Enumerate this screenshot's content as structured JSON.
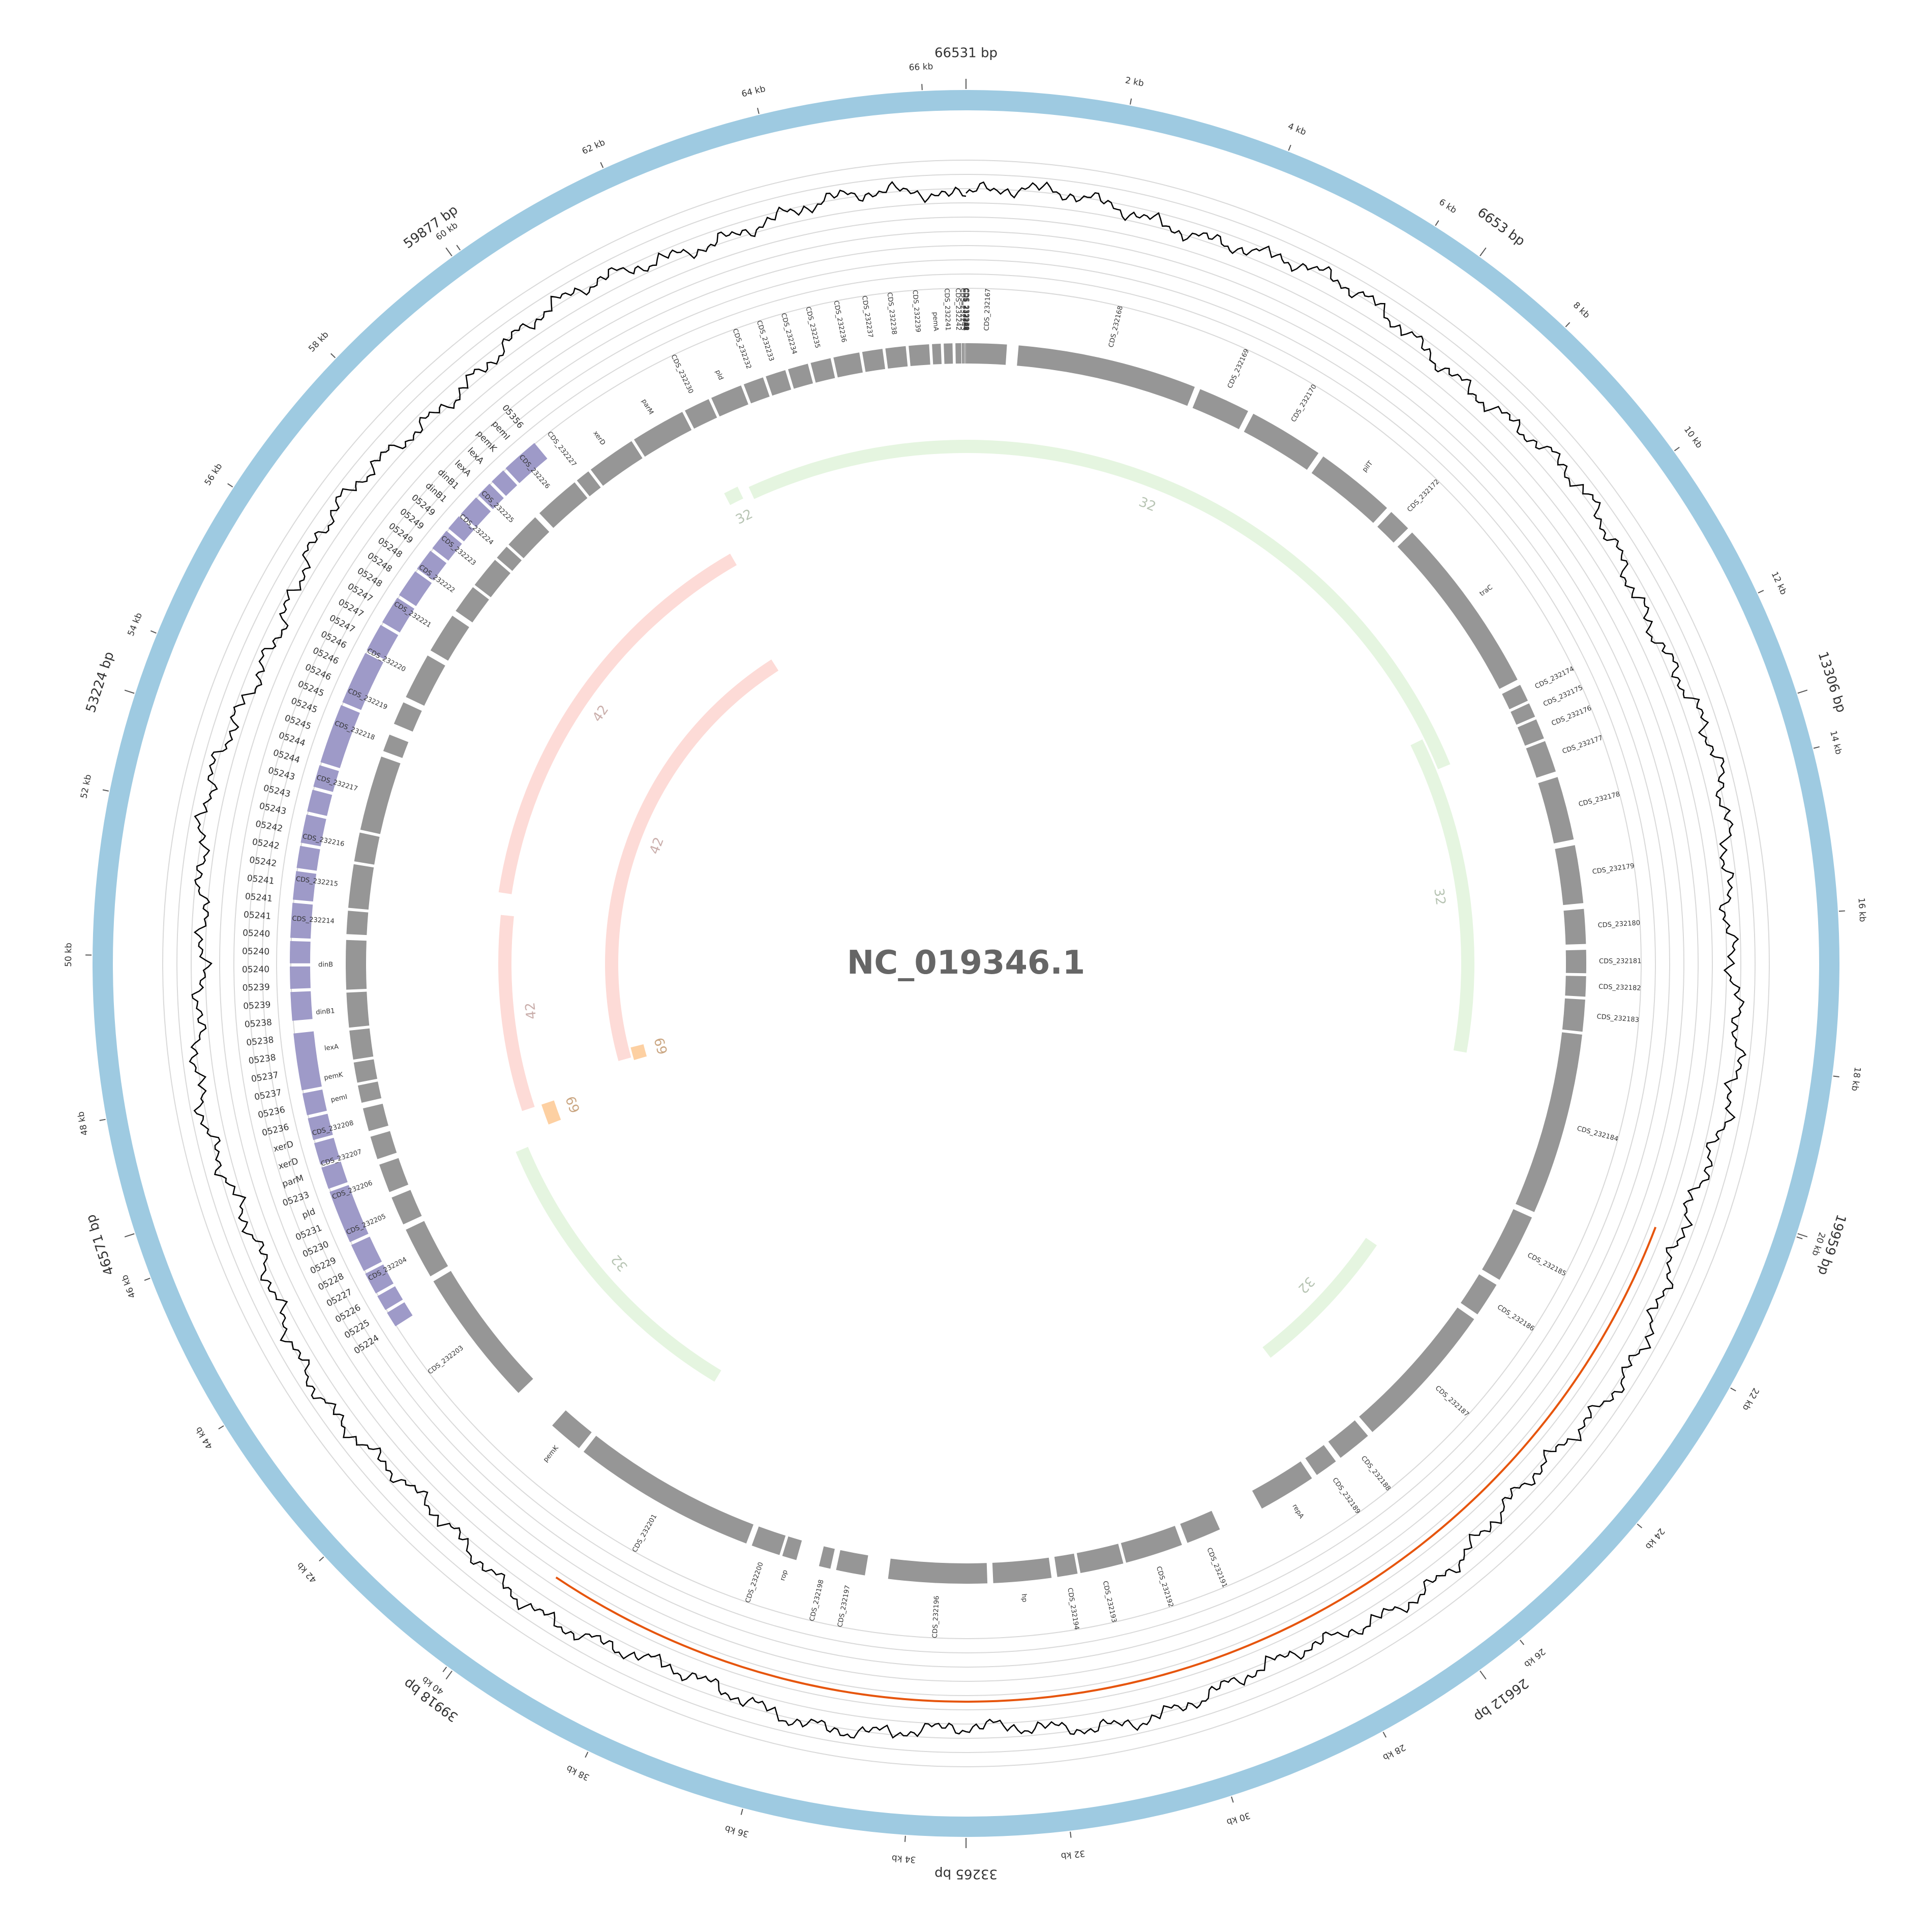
{
  "title": "NC_019346.1",
  "genome_length_bp": 66531,
  "colors": {
    "outer_ring": "#9ecae1",
    "gc_line": "#000000",
    "gc_high": "#2ca02c",
    "gc_low": "#e6550d",
    "forward_cds": "#9e9ac8",
    "cds": "#969696",
    "link_32": "#e5f5e0",
    "link_42": "#fddbd7",
    "link_69": "#fdd0a2",
    "grid": "#d9d9d9",
    "label_text": "#333333",
    "title_text": "#666666"
  },
  "major_position_labels": [
    "66531 bp",
    "6653 bp",
    "13306 bp",
    "19959 bp",
    "26612 bp",
    "33265 bp",
    "39918 bp",
    "46571 bp",
    "53224 bp",
    "59877 bp"
  ],
  "kb_tick_labels": [
    "2 kb",
    "4 kb",
    "6 kb",
    "8 kb",
    "10 kb",
    "12 kb",
    "14 kb",
    "16 kb",
    "18 kb",
    "20 kb",
    "22 kb",
    "24 kb",
    "26 kb",
    "28 kb",
    "30 kb",
    "32 kb",
    "34 kb",
    "36 kb",
    "38 kb",
    "40 kb",
    "42 kb",
    "44 kb",
    "46 kb",
    "48 kb",
    "50 kb",
    "52 kb",
    "54 kb",
    "56 kb",
    "58 kb",
    "60 kb",
    "62 kb",
    "64 kb",
    "66 kb"
  ],
  "cds_features": [
    {
      "label": "CDS_232167",
      "start": 0,
      "end": 700
    },
    {
      "label": "CDS_232168",
      "start": 900,
      "end": 4000
    },
    {
      "label": "CDS_232169",
      "start": 4100,
      "end": 5000
    },
    {
      "label": "CDS_232170",
      "start": 5100,
      "end": 6400
    },
    {
      "label": "pilT",
      "start": 6500,
      "end": 7900
    },
    {
      "label": "CDS_232172",
      "start": 8000,
      "end": 8400
    },
    {
      "label": "traC",
      "start": 8500,
      "end": 11600
    },
    {
      "label": "CDS_232174",
      "start": 11700,
      "end": 12000
    },
    {
      "label": "CDS_232175",
      "start": 12050,
      "end": 12300
    },
    {
      "label": "CDS_232176",
      "start": 12350,
      "end": 12700
    },
    {
      "label": "CDS_232177",
      "start": 12750,
      "end": 13300
    },
    {
      "label": "CDS_232178",
      "start": 13400,
      "end": 14500
    },
    {
      "label": "CDS_232179",
      "start": 14600,
      "end": 15600
    },
    {
      "label": "CDS_232180",
      "start": 15700,
      "end": 16300
    },
    {
      "label": "CDS_232181",
      "start": 16400,
      "end": 16800
    },
    {
      "label": "CDS_232182",
      "start": 16850,
      "end": 17200
    },
    {
      "label": "CDS_232183",
      "start": 17250,
      "end": 17800
    },
    {
      "label": "CDS_232184",
      "start": 17850,
      "end": 21000
    },
    {
      "label": "CDS_232185",
      "start": 21100,
      "end": 22300
    },
    {
      "label": "CDS_232186",
      "start": 22400,
      "end": 23000
    },
    {
      "label": "CDS_232187",
      "start": 23100,
      "end": 25700
    },
    {
      "label": "CDS_232188",
      "start": 25800,
      "end": 26400
    },
    {
      "label": "CDS_232189",
      "start": 26500,
      "end": 26900
    },
    {
      "label": "repA",
      "start": 27000,
      "end": 28000
    },
    {
      "label": "CDS_232191",
      "start": 28800,
      "end": 29400
    },
    {
      "label": "CDS_232192",
      "start": 29500,
      "end": 30500
    },
    {
      "label": "CDS_232193",
      "start": 30550,
      "end": 31300
    },
    {
      "label": "CDS_232194",
      "start": 31350,
      "end": 31700
    },
    {
      "label": "hp",
      "start": 31800,
      "end": 32800
    },
    {
      "label": "CDS_232196",
      "start": 32900,
      "end": 34600
    },
    {
      "label": "CDS_232197",
      "start": 35000,
      "end": 35500
    },
    {
      "label": "CDS_232198",
      "start": 35600,
      "end": 35800
    },
    {
      "label": "rop",
      "start": 36200,
      "end": 36450
    },
    {
      "label": "CDS_232200",
      "start": 36500,
      "end": 37000
    },
    {
      "label": "CDS_232201",
      "start": 37100,
      "end": 40300
    },
    {
      "label": "pemK",
      "start": 40400,
      "end": 41000
    },
    {
      "label": "CDS_232203",
      "start": 41800,
      "end": 44200
    },
    {
      "label": "CDS_232204",
      "start": 44300,
      "end": 45200
    },
    {
      "label": "CDS_232205",
      "start": 45300,
      "end": 45800
    },
    {
      "label": "CDS_232206",
      "start": 45900,
      "end": 46400
    },
    {
      "label": "CDS_232207",
      "start": 46500,
      "end": 46900
    },
    {
      "label": "CDS_232208",
      "start": 47000,
      "end": 47400
    },
    {
      "label": "pemI",
      "start": 47500,
      "end": 47800
    },
    {
      "label": "pemK",
      "start": 47850,
      "end": 48200
    },
    {
      "label": "lexA",
      "start": 48250,
      "end": 48750
    },
    {
      "label": "dinB1",
      "start": 48800,
      "end": 49400
    },
    {
      "label": "dinB",
      "start": 49450,
      "end": 50300
    },
    {
      "label": "CDS_232214",
      "start": 50400,
      "end": 50800
    },
    {
      "label": "CDS_232215",
      "start": 50850,
      "end": 51600
    },
    {
      "label": "CDS_232216",
      "start": 51650,
      "end": 52150
    },
    {
      "label": "CDS_232217",
      "start": 52200,
      "end": 53500
    },
    {
      "label": "CDS_232218",
      "start": 53600,
      "end": 53900
    },
    {
      "label": "CDS_232219",
      "start": 54100,
      "end": 54500
    },
    {
      "label": "CDS_232220",
      "start": 54600,
      "end": 55400
    },
    {
      "label": "CDS_232221",
      "start": 55500,
      "end": 56200
    },
    {
      "label": "CDS_232222",
      "start": 56300,
      "end": 56800
    },
    {
      "label": "CDS_232223",
      "start": 56850,
      "end": 57400
    },
    {
      "label": "CDS_232224",
      "start": 57450,
      "end": 57700
    },
    {
      "label": "CDS_232225",
      "start": 57750,
      "end": 58400
    },
    {
      "label": "CDS_232226",
      "start": 58500,
      "end": 59300
    },
    {
      "label": "CDS_232227",
      "start": 59350,
      "end": 59600
    },
    {
      "label": "xerD",
      "start": 59650,
      "end": 60500
    },
    {
      "label": "parM",
      "start": 60550,
      "end": 61500
    },
    {
      "label": "CDS_232230",
      "start": 61550,
      "end": 62000
    },
    {
      "label": "pld",
      "start": 62050,
      "end": 62600
    },
    {
      "label": "CDS_232232",
      "start": 62650,
      "end": 63000
    },
    {
      "label": "CDS_232233",
      "start": 63050,
      "end": 63400
    },
    {
      "label": "CDS_232234",
      "start": 63450,
      "end": 63800
    },
    {
      "label": "CDS_232235",
      "start": 63850,
      "end": 64200
    },
    {
      "label": "CDS_232236",
      "start": 64250,
      "end": 64700
    },
    {
      "label": "CDS_232237",
      "start": 64750,
      "end": 65100
    },
    {
      "label": "CDS_232238",
      "start": 65150,
      "end": 65500
    },
    {
      "label": "CDS_232239",
      "start": 65550,
      "end": 65900
    },
    {
      "label": "pemA",
      "start": 65950,
      "end": 66100
    },
    {
      "label": "CDS_232241",
      "start": 66150,
      "end": 66300
    },
    {
      "label": "CDS_232242",
      "start": 66350,
      "end": 66450
    },
    {
      "label": "CDS_232243",
      "start": 66460,
      "end": 66500
    },
    {
      "label": "CDS_232244",
      "start": 66505,
      "end": 66520
    },
    {
      "label": "lexA",
      "start": 66521,
      "end": 66525
    },
    {
      "label": "CDS_232246",
      "start": 66526,
      "end": 66527
    },
    {
      "label": "CDS_232247",
      "start": 66527,
      "end": 66528
    },
    {
      "label": "tdk",
      "start": 66528,
      "end": 66529
    },
    {
      "label": "CDS_232249",
      "start": 66529,
      "end": 66530
    },
    {
      "label": "CDS_232250",
      "start": 66530,
      "end": 66531
    }
  ],
  "forward_features": [
    {
      "label": "05224",
      "start": 58600,
      "end": 59200
    },
    {
      "label": "05225",
      "start": 58300,
      "end": 58550
    },
    {
      "label": "05226",
      "start": 58000,
      "end": 58250
    },
    {
      "label": "05227",
      "start": 57600,
      "end": 57950
    },
    {
      "label": "05228",
      "start": 57300,
      "end": 57550
    },
    {
      "label": "05229",
      "start": 56900,
      "end": 57250
    },
    {
      "label": "05230",
      "start": 56500,
      "end": 56850
    },
    {
      "label": "05231",
      "start": 56000,
      "end": 56450
    },
    {
      "label": "pld",
      "start": 55500,
      "end": 55950
    },
    {
      "label": "05233",
      "start": 55000,
      "end": 55450
    },
    {
      "label": "parM",
      "start": 54100,
      "end": 54950
    },
    {
      "label": "xerD",
      "start": 53100,
      "end": 54050
    },
    {
      "label": "05236",
      "start": 52700,
      "end": 53050
    },
    {
      "label": "05237",
      "start": 52300,
      "end": 52650
    },
    {
      "label": "05238",
      "start": 51800,
      "end": 52250
    },
    {
      "label": "05239",
      "start": 51400,
      "end": 51750
    },
    {
      "label": "05240",
      "start": 50900,
      "end": 51350
    },
    {
      "label": "05241",
      "start": 50300,
      "end": 50850
    },
    {
      "label": "05242",
      "start": 49900,
      "end": 50250
    },
    {
      "label": "05243",
      "start": 49500,
      "end": 49850
    },
    {
      "label": "05244",
      "start": 49000,
      "end": 49450
    },
    {
      "label": "05245",
      "start": 47900,
      "end": 48800
    },
    {
      "label": "05246",
      "start": 47500,
      "end": 47850
    },
    {
      "label": "05247",
      "start": 47100,
      "end": 47450
    },
    {
      "label": "05248",
      "start": 46700,
      "end": 47050
    },
    {
      "label": "05249",
      "start": 46300,
      "end": 46650
    },
    {
      "label": "dinB1",
      "start": 45400,
      "end": 46250
    },
    {
      "label": "lexA",
      "start": 44900,
      "end": 45350
    },
    {
      "label": "pemK",
      "start": 44500,
      "end": 44850
    },
    {
      "label": "pemI",
      "start": 44200,
      "end": 44450
    },
    {
      "label": "05356",
      "start": 43900,
      "end": 44150
    }
  ],
  "forward_outer_labels": [
    "05224",
    "05225",
    "05226",
    "05227",
    "05228",
    "05229",
    "05230",
    "05231",
    "pld",
    "05233",
    "parM",
    "xerD",
    "xerD",
    "05236",
    "05236",
    "05237",
    "05237",
    "05238",
    "05238",
    "05238",
    "05239",
    "05239",
    "05240",
    "05240",
    "05240",
    "05241",
    "05241",
    "05241",
    "05242",
    "05242",
    "05242",
    "05243",
    "05243",
    "05243",
    "05244",
    "05244",
    "05245",
    "05245",
    "05245",
    "05246",
    "05246",
    "05246",
    "05247",
    "05247",
    "05247",
    "05248",
    "05248",
    "05248",
    "05249",
    "05249",
    "05249",
    "dinB1",
    "dinB1",
    "lexA",
    "lexA",
    "pemK",
    "pemI",
    "05356"
  ],
  "links": [
    {
      "label": "32",
      "color": "link_32",
      "start": 62000,
      "end": 12500
    },
    {
      "label": "32",
      "color": "link_32",
      "start": 11800,
      "end": 18500
    },
    {
      "label": "32",
      "color": "link_32",
      "start": 23000,
      "end": 26300
    },
    {
      "label": "32",
      "color": "link_32",
      "start": 39000,
      "end": 45700
    },
    {
      "label": "32",
      "color": "link_32",
      "start": 61500,
      "end": 61800
    },
    {
      "label": "42",
      "color": "link_42",
      "start": 51500,
      "end": 61000
    },
    {
      "label": "42",
      "color": "link_42",
      "start": 46500,
      "end": 51000
    },
    {
      "label": "42",
      "color": "link_42",
      "start": 47000,
      "end": 60500
    },
    {
      "label": "69",
      "color": "link_69",
      "start": 46000,
      "end": 46500
    },
    {
      "label": "69",
      "color": "link_69",
      "start": 46900,
      "end": 47300
    }
  ]
}
